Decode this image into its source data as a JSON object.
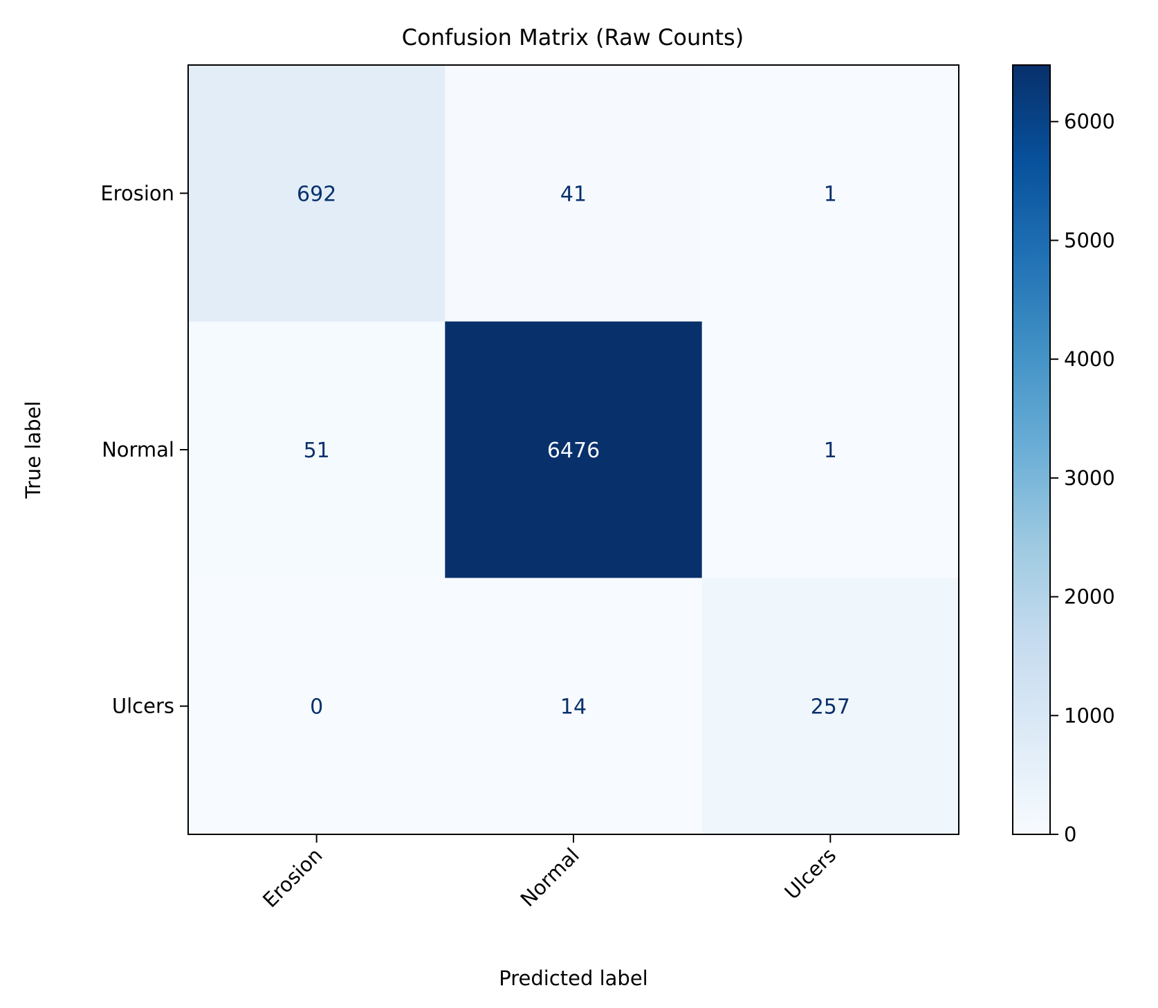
{
  "chart_data": {
    "type": "heatmap",
    "title": "Confusion Matrix (Raw Counts)",
    "xlabel": "Predicted label",
    "ylabel": "True label",
    "x_categories": [
      "Erosion",
      "Normal",
      "Ulcers"
    ],
    "y_categories": [
      "Erosion",
      "Normal",
      "Ulcers"
    ],
    "matrix": [
      [
        692,
        41,
        1
      ],
      [
        51,
        6476,
        1
      ],
      [
        0,
        14,
        257
      ]
    ],
    "colormap": "Blues",
    "colorbar": {
      "range": [
        0,
        6476
      ],
      "ticks": [
        0,
        1000,
        2000,
        3000,
        4000,
        5000,
        6000
      ]
    },
    "colors": {
      "low": "#f7fbff",
      "high": "#08306b",
      "text_dark": "#08306b",
      "text_light": "#f7fbff"
    }
  }
}
